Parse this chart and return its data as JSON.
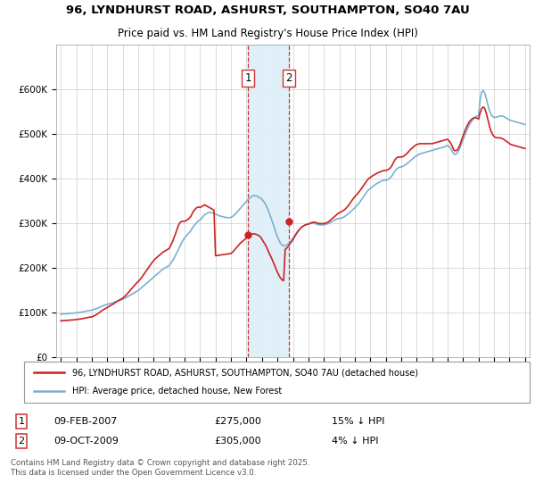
{
  "title_line1": "96, LYNDHURST ROAD, ASHURST, SOUTHAMPTON, SO40 7AU",
  "title_line2": "Price paid vs. HM Land Registry's House Price Index (HPI)",
  "hpi_color": "#7ab0d4",
  "sale_color": "#cc2222",
  "annotation_shade_color": "#ddeef8",
  "vline_color": "#cc3333",
  "ylim": [
    0,
    700000
  ],
  "yticks": [
    0,
    100000,
    200000,
    300000,
    400000,
    500000,
    600000
  ],
  "ytick_labels": [
    "£0",
    "£100K",
    "£200K",
    "£300K",
    "£400K",
    "£500K",
    "£600K"
  ],
  "xlim_left": 1994.7,
  "xlim_right": 2025.3,
  "transaction1_x": 2007.1,
  "transaction1_y": 275000,
  "transaction2_x": 2009.75,
  "transaction2_y": 305000,
  "legend1_label": "96, LYNDHURST ROAD, ASHURST, SOUTHAMPTON, SO40 7AU (detached house)",
  "legend2_label": "HPI: Average price, detached house, New Forest",
  "footnote": "Contains HM Land Registry data © Crown copyright and database right 2025.\nThis data is licensed under the Open Government Licence v3.0.",
  "table_row1": [
    "1",
    "09-FEB-2007",
    "£275,000",
    "15% ↓ HPI"
  ],
  "table_row2": [
    "2",
    "09-OCT-2009",
    "£305,000",
    "4% ↓ HPI"
  ],
  "hpi_x": [
    1995.0,
    1995.1,
    1995.2,
    1995.3,
    1995.4,
    1995.5,
    1995.6,
    1995.7,
    1995.8,
    1995.9,
    1996.0,
    1996.1,
    1996.2,
    1996.3,
    1996.4,
    1996.5,
    1996.6,
    1996.7,
    1996.8,
    1996.9,
    1997.0,
    1997.1,
    1997.2,
    1997.3,
    1997.4,
    1997.5,
    1997.6,
    1997.7,
    1997.8,
    1997.9,
    1998.0,
    1998.1,
    1998.2,
    1998.3,
    1998.4,
    1998.5,
    1998.6,
    1998.7,
    1998.8,
    1998.9,
    1999.0,
    1999.1,
    1999.2,
    1999.3,
    1999.4,
    1999.5,
    1999.6,
    1999.7,
    1999.8,
    1999.9,
    2000.0,
    2000.1,
    2000.2,
    2000.3,
    2000.4,
    2000.5,
    2000.6,
    2000.7,
    2000.8,
    2000.9,
    2001.0,
    2001.1,
    2001.2,
    2001.3,
    2001.4,
    2001.5,
    2001.6,
    2001.7,
    2001.8,
    2001.9,
    2002.0,
    2002.1,
    2002.2,
    2002.3,
    2002.4,
    2002.5,
    2002.6,
    2002.7,
    2002.8,
    2002.9,
    2003.0,
    2003.1,
    2003.2,
    2003.3,
    2003.4,
    2003.5,
    2003.6,
    2003.7,
    2003.8,
    2003.9,
    2004.0,
    2004.1,
    2004.2,
    2004.3,
    2004.4,
    2004.5,
    2004.6,
    2004.7,
    2004.8,
    2004.9,
    2005.0,
    2005.1,
    2005.2,
    2005.3,
    2005.4,
    2005.5,
    2005.6,
    2005.7,
    2005.8,
    2005.9,
    2006.0,
    2006.1,
    2006.2,
    2006.3,
    2006.4,
    2006.5,
    2006.6,
    2006.7,
    2006.8,
    2006.9,
    2007.0,
    2007.1,
    2007.2,
    2007.3,
    2007.4,
    2007.5,
    2007.6,
    2007.7,
    2007.8,
    2007.9,
    2008.0,
    2008.1,
    2008.2,
    2008.3,
    2008.4,
    2008.5,
    2008.6,
    2008.7,
    2008.8,
    2008.9,
    2009.0,
    2009.1,
    2009.2,
    2009.3,
    2009.4,
    2009.5,
    2009.6,
    2009.7,
    2009.8,
    2009.9,
    2010.0,
    2010.1,
    2010.2,
    2010.3,
    2010.4,
    2010.5,
    2010.6,
    2010.7,
    2010.8,
    2010.9,
    2011.0,
    2011.1,
    2011.2,
    2011.3,
    2011.4,
    2011.5,
    2011.6,
    2011.7,
    2011.8,
    2011.9,
    2012.0,
    2012.1,
    2012.2,
    2012.3,
    2012.4,
    2012.5,
    2012.6,
    2012.7,
    2012.8,
    2012.9,
    2013.0,
    2013.1,
    2013.2,
    2013.3,
    2013.4,
    2013.5,
    2013.6,
    2013.7,
    2013.8,
    2013.9,
    2014.0,
    2014.1,
    2014.2,
    2014.3,
    2014.4,
    2014.5,
    2014.6,
    2014.7,
    2014.8,
    2014.9,
    2015.0,
    2015.1,
    2015.2,
    2015.3,
    2015.4,
    2015.5,
    2015.6,
    2015.7,
    2015.8,
    2015.9,
    2016.0,
    2016.1,
    2016.2,
    2016.3,
    2016.4,
    2016.5,
    2016.6,
    2016.7,
    2016.8,
    2016.9,
    2017.0,
    2017.1,
    2017.2,
    2017.3,
    2017.4,
    2017.5,
    2017.6,
    2017.7,
    2017.8,
    2017.9,
    2018.0,
    2018.1,
    2018.2,
    2018.3,
    2018.4,
    2018.5,
    2018.6,
    2018.7,
    2018.8,
    2018.9,
    2019.0,
    2019.1,
    2019.2,
    2019.3,
    2019.4,
    2019.5,
    2019.6,
    2019.7,
    2019.8,
    2019.9,
    2020.0,
    2020.1,
    2020.2,
    2020.3,
    2020.4,
    2020.5,
    2020.6,
    2020.7,
    2020.8,
    2020.9,
    2021.0,
    2021.1,
    2021.2,
    2021.3,
    2021.4,
    2021.5,
    2021.6,
    2021.7,
    2021.8,
    2021.9,
    2022.0,
    2022.1,
    2022.2,
    2022.3,
    2022.4,
    2022.5,
    2022.6,
    2022.7,
    2022.8,
    2022.9,
    2023.0,
    2023.1,
    2023.2,
    2023.3,
    2023.4,
    2023.5,
    2023.6,
    2023.7,
    2023.8,
    2023.9,
    2024.0,
    2024.1,
    2024.2,
    2024.3,
    2024.4,
    2024.5,
    2024.6,
    2024.7,
    2024.8,
    2024.9,
    2025.0
  ],
  "hpi_y": [
    97000,
    97500,
    98000,
    97800,
    98200,
    98500,
    98800,
    99000,
    99300,
    99600,
    100000,
    100500,
    101000,
    101500,
    102000,
    102800,
    103500,
    104200,
    105000,
    105500,
    106000,
    107000,
    108000,
    109500,
    111000,
    112500,
    114000,
    115500,
    117000,
    118000,
    119000,
    120000,
    121000,
    122000,
    123000,
    124500,
    126000,
    127000,
    128000,
    129000,
    130000,
    132000,
    134000,
    136000,
    138000,
    140000,
    142000,
    144000,
    146000,
    148000,
    150000,
    153000,
    156000,
    159000,
    162000,
    165000,
    168000,
    171000,
    174000,
    177000,
    180000,
    183000,
    186000,
    189000,
    192000,
    195000,
    198000,
    200000,
    202000,
    204000,
    206000,
    211000,
    216000,
    221000,
    228000,
    235000,
    242000,
    249000,
    256000,
    263000,
    268000,
    272000,
    276000,
    280000,
    284000,
    290000,
    295000,
    299000,
    303000,
    306000,
    308000,
    312000,
    316000,
    320000,
    322000,
    324000,
    325000,
    325000,
    324000,
    323000,
    321000,
    320000,
    318000,
    317000,
    316000,
    315000,
    314000,
    314000,
    313000,
    313000,
    314000,
    316000,
    319000,
    322000,
    326000,
    330000,
    334000,
    338000,
    342000,
    346000,
    350000,
    354000,
    357000,
    360000,
    362000,
    363000,
    362000,
    361000,
    359000,
    357000,
    354000,
    350000,
    345000,
    338000,
    330000,
    321000,
    311000,
    301000,
    291000,
    280000,
    270000,
    263000,
    256000,
    252000,
    250000,
    250000,
    252000,
    255000,
    258000,
    262000,
    267000,
    272000,
    277000,
    282000,
    286000,
    290000,
    293000,
    295000,
    297000,
    298000,
    299000,
    300000,
    301000,
    301000,
    300000,
    299000,
    298000,
    297000,
    297000,
    297000,
    297000,
    298000,
    299000,
    300000,
    302000,
    304000,
    306000,
    308000,
    310000,
    311000,
    311000,
    312000,
    313000,
    315000,
    317000,
    320000,
    323000,
    326000,
    329000,
    332000,
    335000,
    339000,
    343000,
    347000,
    352000,
    357000,
    362000,
    367000,
    372000,
    376000,
    378000,
    381000,
    384000,
    387000,
    389000,
    391000,
    393000,
    395000,
    396000,
    397000,
    397000,
    398000,
    400000,
    403000,
    407000,
    413000,
    418000,
    422000,
    425000,
    426000,
    427000,
    428000,
    430000,
    432000,
    435000,
    438000,
    441000,
    444000,
    447000,
    450000,
    452000,
    454000,
    456000,
    457000,
    458000,
    459000,
    460000,
    461000,
    462000,
    463000,
    464000,
    465000,
    466000,
    467000,
    468000,
    469000,
    470000,
    471000,
    472000,
    474000,
    475000,
    472000,
    468000,
    462000,
    456000,
    455000,
    457000,
    462000,
    470000,
    479000,
    488000,
    497000,
    506000,
    514000,
    521000,
    527000,
    532000,
    536000,
    539000,
    541000,
    542000,
    578000,
    595000,
    598000,
    592000,
    580000,
    566000,
    553000,
    545000,
    540000,
    538000,
    538000,
    539000,
    540000,
    541000,
    541000,
    540000,
    538000,
    536000,
    534000,
    532000,
    531000,
    530000,
    529000,
    528000,
    527000,
    526000,
    525000,
    524000,
    523000,
    522000
  ],
  "sale_x": [
    1995.0,
    1995.1,
    1995.2,
    1995.3,
    1995.4,
    1995.5,
    1995.6,
    1995.7,
    1995.8,
    1995.9,
    1996.0,
    1996.1,
    1996.2,
    1996.3,
    1996.4,
    1996.5,
    1996.6,
    1996.7,
    1996.8,
    1996.9,
    1997.0,
    1997.1,
    1997.2,
    1997.3,
    1997.4,
    1997.5,
    1997.6,
    1997.7,
    1997.8,
    1997.9,
    1998.0,
    1998.1,
    1998.2,
    1998.3,
    1998.4,
    1998.5,
    1998.6,
    1998.7,
    1998.8,
    1998.9,
    1999.0,
    1999.1,
    1999.2,
    1999.3,
    1999.4,
    1999.5,
    1999.6,
    1999.7,
    1999.8,
    1999.9,
    2000.0,
    2000.1,
    2000.2,
    2000.3,
    2000.4,
    2000.5,
    2000.6,
    2000.7,
    2000.8,
    2000.9,
    2001.0,
    2001.1,
    2001.2,
    2001.3,
    2001.4,
    2001.5,
    2001.6,
    2001.7,
    2001.8,
    2001.9,
    2002.0,
    2002.1,
    2002.2,
    2002.3,
    2002.4,
    2002.5,
    2002.6,
    2002.7,
    2002.8,
    2002.9,
    2003.0,
    2003.1,
    2003.2,
    2003.3,
    2003.4,
    2003.5,
    2003.6,
    2003.7,
    2003.8,
    2003.9,
    2004.0,
    2004.1,
    2004.2,
    2004.3,
    2004.4,
    2004.5,
    2004.6,
    2004.7,
    2004.8,
    2004.9,
    2005.0,
    2005.1,
    2005.2,
    2005.3,
    2005.4,
    2005.5,
    2005.6,
    2005.7,
    2005.8,
    2005.9,
    2006.0,
    2006.1,
    2006.2,
    2006.3,
    2006.4,
    2006.5,
    2006.6,
    2006.7,
    2006.8,
    2006.9,
    2007.0,
    2007.1,
    2007.2,
    2007.3,
    2007.4,
    2007.5,
    2007.6,
    2007.7,
    2007.8,
    2007.9,
    2008.0,
    2008.1,
    2008.2,
    2008.3,
    2008.4,
    2008.5,
    2008.6,
    2008.7,
    2008.8,
    2008.9,
    2009.0,
    2009.1,
    2009.2,
    2009.3,
    2009.4,
    2009.5,
    2009.6,
    2009.7,
    2009.8,
    2009.9,
    2010.0,
    2010.1,
    2010.2,
    2010.3,
    2010.4,
    2010.5,
    2010.6,
    2010.7,
    2010.8,
    2010.9,
    2011.0,
    2011.1,
    2011.2,
    2011.3,
    2011.4,
    2011.5,
    2011.6,
    2011.7,
    2011.8,
    2011.9,
    2012.0,
    2012.1,
    2012.2,
    2012.3,
    2012.4,
    2012.5,
    2012.6,
    2012.7,
    2012.8,
    2012.9,
    2013.0,
    2013.1,
    2013.2,
    2013.3,
    2013.4,
    2013.5,
    2013.6,
    2013.7,
    2013.8,
    2013.9,
    2014.0,
    2014.1,
    2014.2,
    2014.3,
    2014.4,
    2014.5,
    2014.6,
    2014.7,
    2014.8,
    2014.9,
    2015.0,
    2015.1,
    2015.2,
    2015.3,
    2015.4,
    2015.5,
    2015.6,
    2015.7,
    2015.8,
    2015.9,
    2016.0,
    2016.1,
    2016.2,
    2016.3,
    2016.4,
    2016.5,
    2016.6,
    2016.7,
    2016.8,
    2016.9,
    2017.0,
    2017.1,
    2017.2,
    2017.3,
    2017.4,
    2017.5,
    2017.6,
    2017.7,
    2017.8,
    2017.9,
    2018.0,
    2018.1,
    2018.2,
    2018.3,
    2018.4,
    2018.5,
    2018.6,
    2018.7,
    2018.8,
    2018.9,
    2019.0,
    2019.1,
    2019.2,
    2019.3,
    2019.4,
    2019.5,
    2019.6,
    2019.7,
    2019.8,
    2019.9,
    2020.0,
    2020.1,
    2020.2,
    2020.3,
    2020.4,
    2020.5,
    2020.6,
    2020.7,
    2020.8,
    2020.9,
    2021.0,
    2021.1,
    2021.2,
    2021.3,
    2021.4,
    2021.5,
    2021.6,
    2021.7,
    2021.8,
    2021.9,
    2022.0,
    2022.1,
    2022.2,
    2022.3,
    2022.4,
    2022.5,
    2022.6,
    2022.7,
    2022.8,
    2022.9,
    2023.0,
    2023.1,
    2023.2,
    2023.3,
    2023.4,
    2023.5,
    2023.6,
    2023.7,
    2023.8,
    2023.9,
    2024.0,
    2024.1,
    2024.2,
    2024.3,
    2024.4,
    2024.5,
    2024.6,
    2024.7,
    2024.8,
    2024.9,
    2025.0
  ],
  "sale_y": [
    82000,
    82500,
    83000,
    82800,
    83200,
    83500,
    83800,
    84000,
    84300,
    84600,
    85000,
    85500,
    86000,
    86500,
    87000,
    87800,
    88500,
    89200,
    90000,
    90500,
    91000,
    92500,
    94000,
    96000,
    98500,
    101000,
    103500,
    106000,
    108000,
    110000,
    112000,
    114000,
    116000,
    118000,
    120000,
    122500,
    125000,
    127000,
    129000,
    131000,
    133000,
    136000,
    139000,
    143000,
    147000,
    151000,
    155000,
    159000,
    163000,
    167000,
    170000,
    174000,
    178000,
    183000,
    188000,
    193000,
    198000,
    203000,
    208000,
    213000,
    217000,
    221000,
    224000,
    227000,
    230000,
    233000,
    236000,
    238000,
    240000,
    242000,
    244000,
    251000,
    258000,
    267000,
    276000,
    286000,
    296000,
    302000,
    305000,
    305000,
    305000,
    307000,
    309000,
    312000,
    316000,
    323000,
    329000,
    333000,
    336000,
    337000,
    336000,
    338000,
    340000,
    342000,
    340000,
    338000,
    336000,
    334000,
    332000,
    330000,
    228000,
    228500,
    229000,
    229500,
    230000,
    230500,
    231000,
    231500,
    232000,
    232500,
    233000,
    236000,
    240000,
    244000,
    248000,
    252000,
    256000,
    259000,
    262000,
    265000,
    268000,
    271000,
    274000,
    276000,
    277000,
    277000,
    276000,
    275000,
    273000,
    270000,
    265000,
    259000,
    254000,
    247000,
    239000,
    231000,
    224000,
    216000,
    208000,
    199000,
    191000,
    184000,
    178000,
    174000,
    172000,
    242000,
    245000,
    249000,
    254000,
    259000,
    264000,
    270000,
    276000,
    281000,
    286000,
    290000,
    293000,
    295000,
    297000,
    298000,
    299000,
    300000,
    302000,
    303000,
    303000,
    302000,
    301000,
    300000,
    300000,
    300000,
    300000,
    301000,
    302000,
    304000,
    307000,
    310000,
    313000,
    316000,
    319000,
    322000,
    324000,
    326000,
    328000,
    330000,
    333000,
    337000,
    341000,
    346000,
    351000,
    356000,
    360000,
    364000,
    368000,
    372000,
    377000,
    382000,
    387000,
    392000,
    397000,
    401000,
    403000,
    406000,
    408000,
    410000,
    412000,
    414000,
    415000,
    417000,
    418000,
    419000,
    419000,
    420000,
    422000,
    425000,
    430000,
    437000,
    443000,
    447000,
    449000,
    449000,
    449000,
    450000,
    452000,
    455000,
    458000,
    462000,
    466000,
    469000,
    472000,
    475000,
    477000,
    478000,
    479000,
    479000,
    479000,
    479000,
    479000,
    479000,
    479000,
    479000,
    479000,
    480000,
    481000,
    482000,
    483000,
    484000,
    485000,
    486000,
    487000,
    488000,
    489000,
    485000,
    480000,
    473000,
    465000,
    463000,
    464000,
    469000,
    477000,
    487000,
    497000,
    506000,
    515000,
    522000,
    528000,
    532000,
    535000,
    537000,
    537000,
    536000,
    534000,
    548000,
    558000,
    561000,
    558000,
    547000,
    533000,
    519000,
    507000,
    500000,
    495000,
    493000,
    492000,
    492000,
    492000,
    491000,
    489000,
    487000,
    484000,
    482000,
    479000,
    477000,
    476000,
    475000,
    474000,
    473000,
    472000,
    471000,
    470000,
    469000,
    468000
  ]
}
